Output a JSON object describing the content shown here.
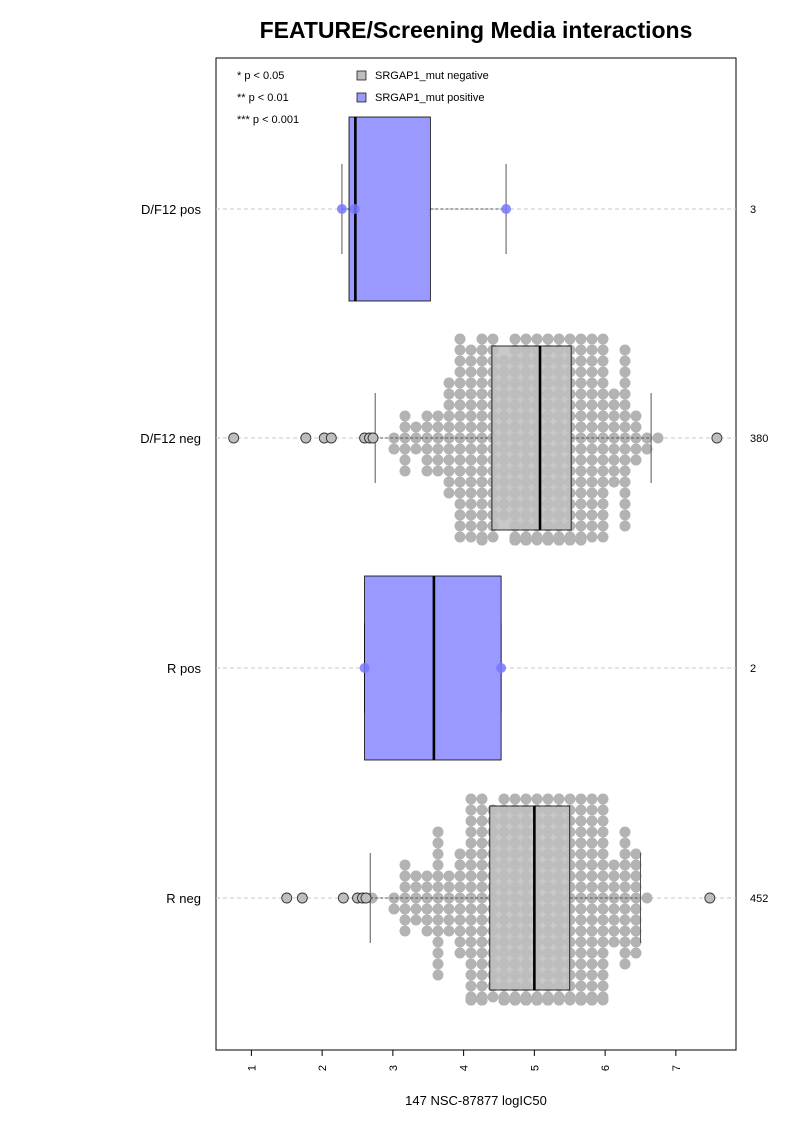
{
  "chart_data": {
    "type": "box",
    "orientation": "horizontal",
    "title": "FEATURE/Screening Media interactions",
    "xlabel": "147 NSC-87877 logIC50",
    "xlim": [
      0.5,
      7.85
    ],
    "x_ticks": [
      1,
      2,
      3,
      4,
      5,
      6,
      7
    ],
    "grid": "dashed horizontal line per group",
    "significance_legend": [
      "* p < 0.05",
      "** p < 0.01",
      "*** p < 0.001"
    ],
    "legend": {
      "position": "top-left",
      "entries": [
        {
          "label": "SRGAP1_mut negative",
          "color": "#bebebe"
        },
        {
          "label": "SRGAP1_mut positive",
          "color": "#9999ff"
        }
      ]
    },
    "groups": [
      {
        "label": "D/F12 pos",
        "n": "3",
        "type": "positive",
        "whisker_low": 2.28,
        "q1": 2.38,
        "median": 2.47,
        "q3": 3.53,
        "whisker_high": 4.6,
        "points": [
          2.28,
          2.46,
          4.6
        ],
        "outliers": []
      },
      {
        "label": "D/F12 neg",
        "n": "380",
        "type": "negative",
        "whisker_low": 2.75,
        "q1": 4.4,
        "median": 5.08,
        "q3": 5.52,
        "whisker_high": 6.65,
        "outliers": [
          0.75,
          1.77,
          2.03,
          2.13,
          2.6,
          2.67,
          2.72,
          7.58
        ]
      },
      {
        "label": "R pos",
        "n": "2",
        "type": "positive",
        "whisker_low": 2.6,
        "q1": 2.6,
        "median": 3.58,
        "q3": 4.53,
        "whisker_high": 4.53,
        "points": [
          2.6,
          4.53
        ],
        "outliers": []
      },
      {
        "label": "R neg",
        "n": "452",
        "type": "negative",
        "whisker_low": 2.68,
        "q1": 4.37,
        "median": 5.0,
        "q3": 5.5,
        "whisker_high": 6.5,
        "outliers": [
          1.5,
          1.72,
          2.3,
          2.5,
          2.57,
          2.62,
          7.48
        ]
      }
    ]
  },
  "colors": {
    "positive_fill": "#9999ff",
    "negative_fill": "#bebebe",
    "positive_point": "#7777ff",
    "negative_point": "#b3b3b3",
    "outlier_fill": "#bebebe",
    "grid": "#c8c8c8"
  }
}
